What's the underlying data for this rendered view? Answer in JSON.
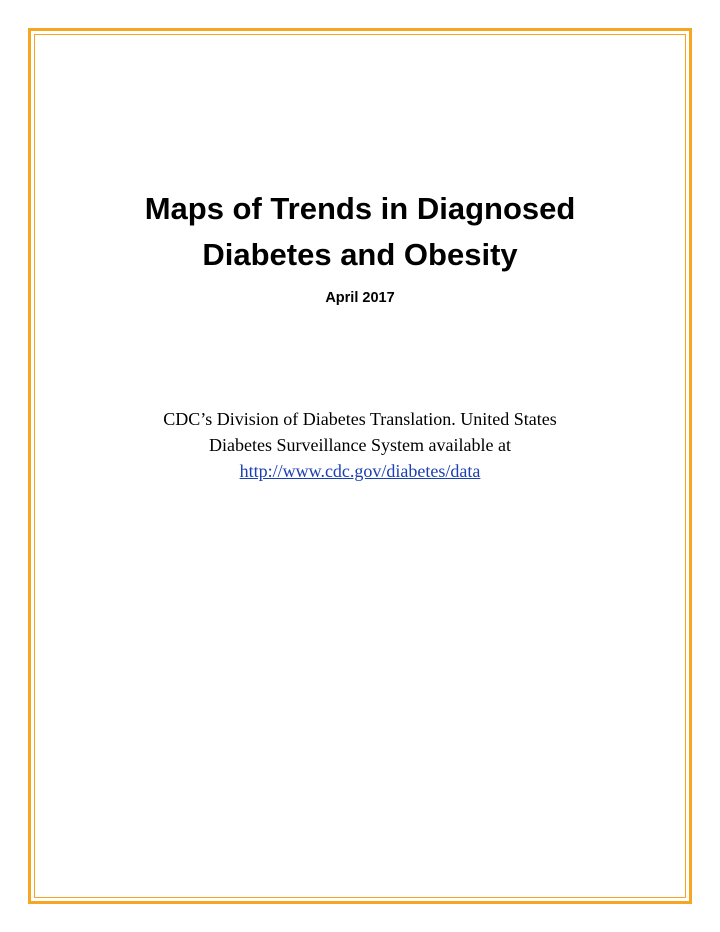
{
  "title": {
    "line1": "Maps of Trends in Diagnosed",
    "line2": "Diabetes and Obesity"
  },
  "date": "April 2017",
  "credit": {
    "line1": "CDC’s Division of Diabetes Translation. United States",
    "line2": "Diabetes Surveillance System available at",
    "link": "http://www.cdc.gov/diabetes/data"
  },
  "colors": {
    "border": "#f5a623",
    "link": "#1a3fb0"
  }
}
